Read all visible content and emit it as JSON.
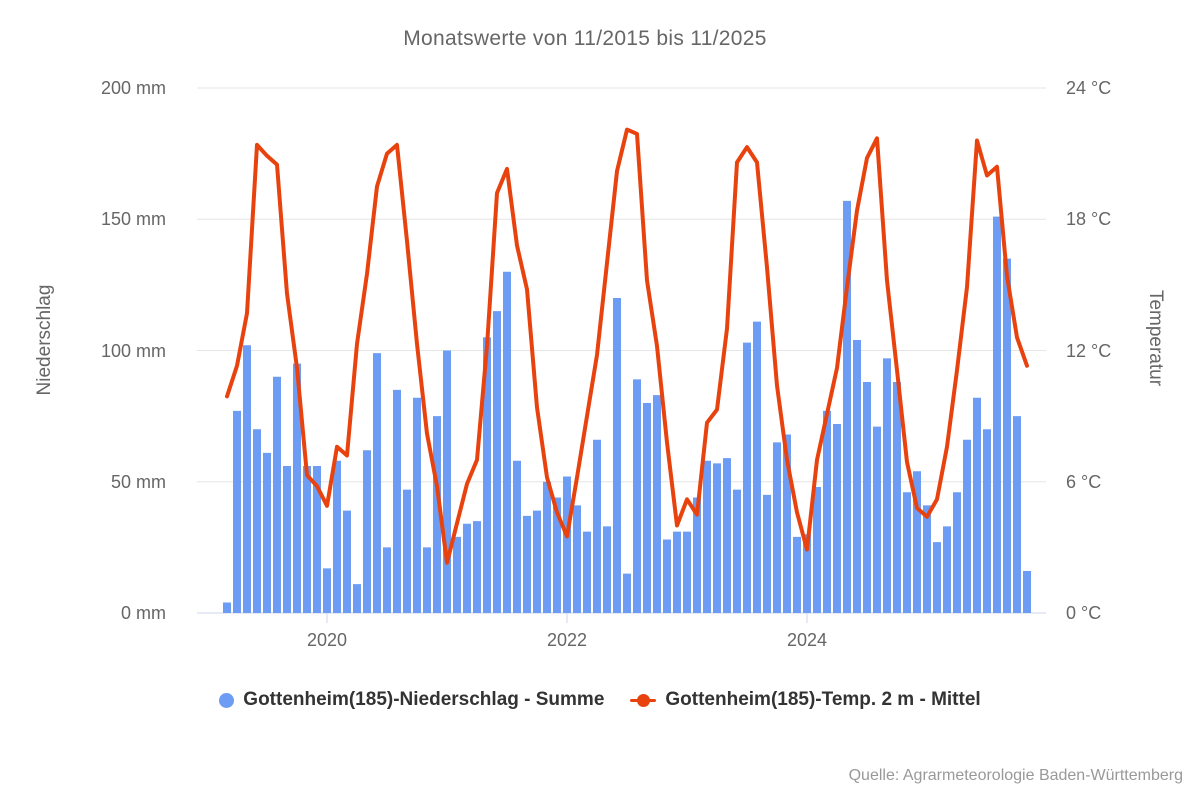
{
  "chart": {
    "title": "Monatswerte von 11/2015 bis 11/2025",
    "y_axis_left": {
      "title": "Niederschlag",
      "tick_values": [
        0,
        50,
        100,
        150,
        200
      ],
      "tick_labels": [
        "0 mm",
        "50 mm",
        "100 mm",
        "150 mm",
        "200 mm"
      ]
    },
    "y_axis_right": {
      "title": "Temperatur",
      "tick_values": [
        0,
        6,
        12,
        18,
        24
      ],
      "tick_labels": [
        "0 °C",
        "6 °C",
        "12 °C",
        "18 °C",
        "24 °C"
      ]
    },
    "x_axis": {
      "tick_labels": [
        "2020",
        "2022",
        "2024"
      ]
    },
    "source": "Quelle: Agrarmeteorologie Baden-Württemberg",
    "colors": {
      "grid": "#e6e6e6",
      "axis": "#ccd6eb",
      "title_text": "#666666",
      "axis_text": "#666666",
      "legend_text": "#333333",
      "source_text": "#999999"
    }
  },
  "chart_data": {
    "type": "bar",
    "title": "Monatswerte von 11/2015 bis 11/2025",
    "xlabel": "",
    "ylabel_left": "Niederschlag (mm)",
    "ylabel_right": "Temperatur (°C)",
    "ylim_left": [
      0,
      200
    ],
    "ylim_right": [
      0,
      24
    ],
    "grid": true,
    "legend_position": "bottom",
    "x": [
      "2019-03",
      "2019-04",
      "2019-05",
      "2019-06",
      "2019-07",
      "2019-08",
      "2019-09",
      "2019-10",
      "2019-11",
      "2019-12",
      "2020-01",
      "2020-02",
      "2020-03",
      "2020-04",
      "2020-05",
      "2020-06",
      "2020-07",
      "2020-08",
      "2020-09",
      "2020-10",
      "2020-11",
      "2020-12",
      "2021-01",
      "2021-02",
      "2021-03",
      "2021-04",
      "2021-05",
      "2021-06",
      "2021-07",
      "2021-08",
      "2021-09",
      "2021-10",
      "2021-11",
      "2021-12",
      "2022-01",
      "2022-02",
      "2022-03",
      "2022-04",
      "2022-05",
      "2022-06",
      "2022-07",
      "2022-08",
      "2022-09",
      "2022-10",
      "2022-11",
      "2022-12",
      "2023-01",
      "2023-02",
      "2023-03",
      "2023-04",
      "2023-05",
      "2023-06",
      "2023-07",
      "2023-08",
      "2023-09",
      "2023-10",
      "2023-11",
      "2023-12",
      "2024-01",
      "2024-02",
      "2024-03",
      "2024-04",
      "2024-05",
      "2024-06",
      "2024-07",
      "2024-08",
      "2024-09",
      "2024-10",
      "2024-11",
      "2024-12",
      "2025-01",
      "2025-02",
      "2025-03",
      "2025-04",
      "2025-05",
      "2025-06",
      "2025-07",
      "2025-08",
      "2025-09",
      "2025-10",
      "2025-11"
    ],
    "series": [
      {
        "name": "Gottenheim(185)-Niederschlag - Summe",
        "render": "column",
        "axis": "left",
        "unit": "mm",
        "color": "#6c9cf4",
        "values": [
          4,
          77,
          102,
          70,
          61,
          90,
          56,
          95,
          56,
          56,
          17,
          58,
          39,
          11,
          62,
          99,
          25,
          85,
          47,
          82,
          25,
          75,
          100,
          29,
          34,
          35,
          105,
          115,
          130,
          58,
          37,
          39,
          50,
          44,
          52,
          41,
          31,
          66,
          33,
          120,
          15,
          89,
          80,
          83,
          28,
          31,
          31,
          44,
          58,
          57,
          59,
          47,
          103,
          111,
          45,
          65,
          68,
          29,
          30,
          48,
          77,
          72,
          157,
          104,
          88,
          71,
          97,
          88,
          46,
          54,
          41,
          27,
          33,
          46,
          66,
          82,
          70,
          151,
          135,
          75,
          16
        ]
      },
      {
        "name": "Gottenheim(185)-Temp. 2 m - Mittel",
        "render": "line",
        "axis": "right",
        "unit": "°C",
        "color": "#e8430e",
        "values": [
          9.9,
          11.3,
          13.7,
          21.4,
          20.9,
          20.5,
          14.6,
          11.2,
          6.3,
          5.8,
          4.9,
          7.6,
          7.2,
          12.3,
          15.5,
          19.5,
          21.0,
          21.4,
          17.0,
          12.3,
          8.2,
          5.8,
          2.3,
          4.1,
          5.9,
          7.0,
          12.2,
          19.2,
          20.3,
          16.8,
          14.8,
          9.4,
          6.2,
          4.6,
          3.5,
          6.2,
          9.0,
          11.8,
          16.0,
          20.2,
          22.1,
          21.9,
          15.2,
          12.2,
          7.8,
          4.0,
          5.2,
          4.5,
          8.7,
          9.3,
          13.0,
          20.6,
          21.3,
          20.6,
          15.8,
          10.4,
          7.0,
          4.6,
          2.9,
          7.0,
          9.1,
          11.2,
          14.9,
          18.4,
          20.8,
          21.7,
          15.2,
          11.1,
          6.9,
          4.8,
          4.4,
          5.2,
          7.6,
          11.1,
          14.9,
          21.6,
          20.0,
          20.4,
          15.4,
          12.6,
          11.3
        ]
      }
    ]
  }
}
